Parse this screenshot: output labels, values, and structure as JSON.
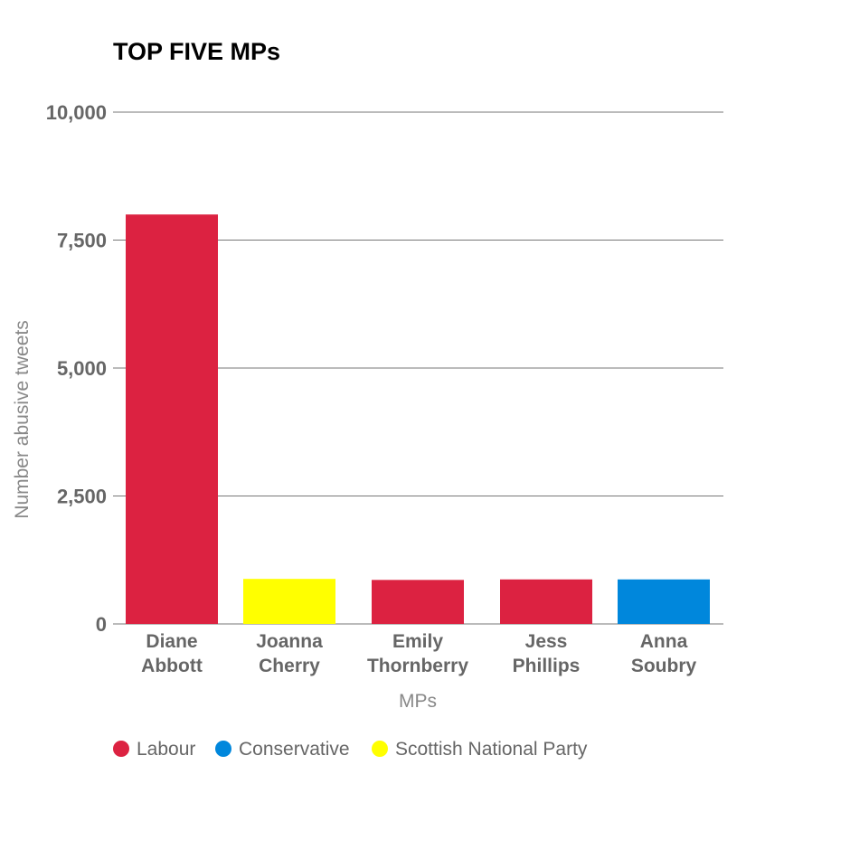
{
  "chart_data": {
    "type": "bar",
    "title": "TOP FIVE MPs",
    "xlabel": "MPs",
    "ylabel": "Number abusive tweets",
    "ylim": [
      0,
      10000
    ],
    "yticks": [
      {
        "value": 0,
        "label": "0"
      },
      {
        "value": 2500,
        "label": "2,500"
      },
      {
        "value": 5000,
        "label": "5,000"
      },
      {
        "value": 7500,
        "label": "7,500"
      },
      {
        "value": 10000,
        "label": "10,000"
      }
    ],
    "grid": true,
    "legend_position": "bottom-left",
    "categories": [
      {
        "line1": "Diane",
        "line2": "Abbott"
      },
      {
        "line1": "Joanna",
        "line2": "Cherry"
      },
      {
        "line1": "Emily",
        "line2": "Thornberry"
      },
      {
        "line1": "Jess",
        "line2": "Phillips"
      },
      {
        "line1": "Anna",
        "line2": "Soubry"
      }
    ],
    "values": [
      8000,
      880,
      860,
      870,
      870
    ],
    "parties": [
      "Labour",
      "Scottish National Party",
      "Labour",
      "Labour",
      "Conservative"
    ],
    "legend": [
      {
        "name": "Labour",
        "color": "#dc2241"
      },
      {
        "name": "Conservative",
        "color": "#0087dc"
      },
      {
        "name": "Scottish National Party",
        "color": "#ffff00"
      }
    ]
  }
}
